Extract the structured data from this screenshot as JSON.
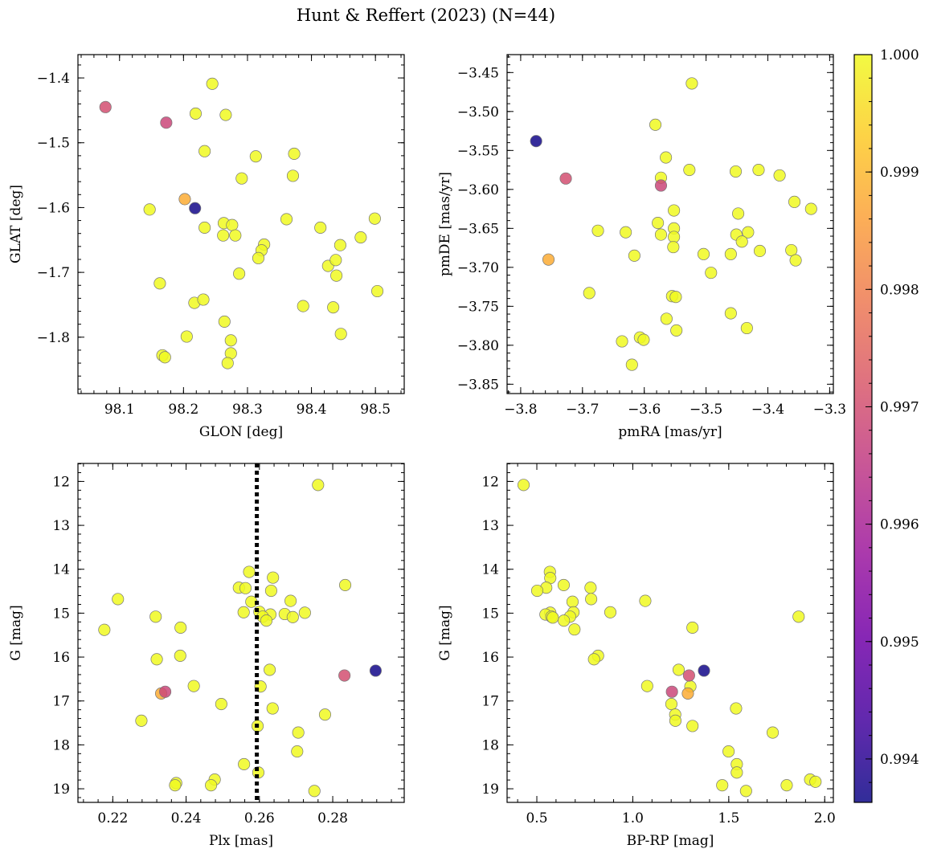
{
  "figure": {
    "title": "Hunt & Reffert (2023) (N=44)"
  },
  "chart_data": [
    {
      "type": "scatter",
      "id": "ax-glon-glat",
      "xlabel": "GLON [deg]",
      "ylabel": "GLAT [deg]",
      "xlim": [
        98.035,
        98.545
      ],
      "ylim": [
        -1.887,
        -1.364
      ],
      "invert_y": false,
      "xticks": [
        98.1,
        98.2,
        98.3,
        98.4,
        98.5
      ],
      "xtick_labels": [
        "98.1",
        "98.2",
        "98.3",
        "98.4",
        "98.5"
      ],
      "yticks": [
        -1.4,
        -1.5,
        -1.6,
        -1.7,
        -1.8
      ],
      "ytick_labels": [
        "−1.4",
        "−1.5",
        "−1.6",
        "−1.7",
        "−1.8"
      ],
      "points": [
        [
          98.078,
          -1.445,
          0.997
        ],
        [
          98.173,
          -1.469,
          0.9968
        ],
        [
          98.202,
          -1.587,
          0.9988
        ],
        [
          98.218,
          -1.601,
          0.9937
        ],
        [
          98.245,
          -1.409,
          1.0
        ],
        [
          98.219,
          -1.455,
          1.0
        ],
        [
          98.266,
          -1.457,
          1.0
        ],
        [
          98.233,
          -1.513,
          1.0
        ],
        [
          98.313,
          -1.521,
          1.0
        ],
        [
          98.373,
          -1.517,
          1.0
        ],
        [
          98.291,
          -1.555,
          1.0
        ],
        [
          98.371,
          -1.551,
          1.0
        ],
        [
          98.147,
          -1.603,
          1.0
        ],
        [
          98.263,
          -1.624,
          1.0
        ],
        [
          98.276,
          -1.627,
          1.0
        ],
        [
          98.233,
          -1.631,
          1.0
        ],
        [
          98.361,
          -1.618,
          1.0
        ],
        [
          98.414,
          -1.631,
          1.0
        ],
        [
          98.499,
          -1.617,
          1.0
        ],
        [
          98.262,
          -1.643,
          1.0
        ],
        [
          98.281,
          -1.643,
          1.0
        ],
        [
          98.326,
          -1.657,
          1.0
        ],
        [
          98.322,
          -1.666,
          1.0
        ],
        [
          98.317,
          -1.678,
          1.0
        ],
        [
          98.445,
          -1.658,
          1.0
        ],
        [
          98.477,
          -1.646,
          1.0
        ],
        [
          98.426,
          -1.69,
          1.0
        ],
        [
          98.438,
          -1.681,
          1.0
        ],
        [
          98.287,
          -1.702,
          1.0
        ],
        [
          98.439,
          -1.705,
          1.0
        ],
        [
          98.163,
          -1.717,
          1.0
        ],
        [
          98.503,
          -1.729,
          1.0
        ],
        [
          98.217,
          -1.747,
          1.0
        ],
        [
          98.231,
          -1.742,
          1.0
        ],
        [
          98.387,
          -1.752,
          1.0
        ],
        [
          98.434,
          -1.754,
          1.0
        ],
        [
          98.264,
          -1.776,
          1.0
        ],
        [
          98.446,
          -1.795,
          1.0
        ],
        [
          98.205,
          -1.799,
          1.0
        ],
        [
          98.274,
          -1.805,
          1.0
        ],
        [
          98.274,
          -1.825,
          1.0
        ],
        [
          98.167,
          -1.828,
          1.0
        ],
        [
          98.171,
          -1.831,
          1.0
        ],
        [
          98.269,
          -1.84,
          1.0
        ]
      ]
    },
    {
      "type": "scatter",
      "id": "ax-pmra-pmde",
      "xlabel": "pmRA [mas/yr]",
      "ylabel": "pmDE [mas/yr]",
      "xlim": [
        -3.822,
        -3.294
      ],
      "ylim": [
        -3.862,
        -3.427
      ],
      "invert_y": false,
      "xticks": [
        -3.8,
        -3.7,
        -3.6,
        -3.5,
        -3.4,
        -3.3
      ],
      "xtick_labels": [
        "−3.8",
        "−3.7",
        "−3.6",
        "−3.5",
        "−3.4",
        "−3.3"
      ],
      "yticks": [
        -3.45,
        -3.5,
        -3.55,
        -3.6,
        -3.65,
        -3.7,
        -3.75,
        -3.8,
        -3.85
      ],
      "ytick_labels": [
        "−3.45",
        "−3.50",
        "−3.55",
        "−3.60",
        "−3.65",
        "−3.70",
        "−3.75",
        "−3.80",
        "−3.85"
      ],
      "points": [
        [
          -3.775,
          -3.538,
          0.9937
        ],
        [
          -3.727,
          -3.586,
          0.997
        ],
        [
          -3.573,
          -3.595,
          0.9968
        ],
        [
          -3.755,
          -3.69,
          0.9988
        ],
        [
          -3.523,
          -3.464,
          1.0
        ],
        [
          -3.582,
          -3.517,
          1.0
        ],
        [
          -3.565,
          -3.559,
          1.0
        ],
        [
          -3.527,
          -3.575,
          1.0
        ],
        [
          -3.452,
          -3.577,
          1.0
        ],
        [
          -3.415,
          -3.575,
          1.0
        ],
        [
          -3.381,
          -3.582,
          1.0
        ],
        [
          -3.573,
          -3.585,
          1.0
        ],
        [
          -3.357,
          -3.616,
          1.0
        ],
        [
          -3.33,
          -3.625,
          1.0
        ],
        [
          -3.552,
          -3.627,
          1.0
        ],
        [
          -3.448,
          -3.631,
          1.0
        ],
        [
          -3.578,
          -3.643,
          1.0
        ],
        [
          -3.552,
          -3.65,
          1.0
        ],
        [
          -3.675,
          -3.653,
          1.0
        ],
        [
          -3.63,
          -3.655,
          1.0
        ],
        [
          -3.573,
          -3.658,
          1.0
        ],
        [
          -3.432,
          -3.655,
          1.0
        ],
        [
          -3.552,
          -3.661,
          1.0
        ],
        [
          -3.451,
          -3.658,
          1.0
        ],
        [
          -3.442,
          -3.667,
          1.0
        ],
        [
          -3.553,
          -3.674,
          1.0
        ],
        [
          -3.413,
          -3.679,
          1.0
        ],
        [
          -3.362,
          -3.678,
          1.0
        ],
        [
          -3.616,
          -3.685,
          1.0
        ],
        [
          -3.504,
          -3.683,
          1.0
        ],
        [
          -3.46,
          -3.683,
          1.0
        ],
        [
          -3.355,
          -3.691,
          1.0
        ],
        [
          -3.492,
          -3.707,
          1.0
        ],
        [
          -3.689,
          -3.733,
          1.0
        ],
        [
          -3.555,
          -3.737,
          1.0
        ],
        [
          -3.549,
          -3.738,
          1.0
        ],
        [
          -3.46,
          -3.759,
          1.0
        ],
        [
          -3.564,
          -3.766,
          1.0
        ],
        [
          -3.434,
          -3.778,
          1.0
        ],
        [
          -3.548,
          -3.781,
          1.0
        ],
        [
          -3.607,
          -3.79,
          1.0
        ],
        [
          -3.601,
          -3.793,
          1.0
        ],
        [
          -3.636,
          -3.795,
          1.0
        ],
        [
          -3.62,
          -3.825,
          1.0
        ]
      ]
    },
    {
      "type": "scatter",
      "id": "ax-plx-g",
      "xlabel": "Plx [mas]",
      "ylabel": "G [mag]",
      "xlim": [
        0.2105,
        0.2995
      ],
      "ylim": [
        19.31,
        11.59
      ],
      "invert_y": true,
      "vline": {
        "x": 0.2593,
        "style": "dotted",
        "color": "#000000"
      },
      "xticks": [
        0.22,
        0.24,
        0.26,
        0.28
      ],
      "xtick_labels": [
        "0.22",
        "0.24",
        "0.26",
        "0.28"
      ],
      "yticks": [
        12,
        13,
        14,
        15,
        16,
        17,
        18,
        19
      ],
      "ytick_labels": [
        "12",
        "13",
        "14",
        "15",
        "16",
        "17",
        "18",
        "19"
      ],
      "points": [
        [
          0.2917,
          16.31,
          0.9937
        ],
        [
          0.2832,
          16.42,
          0.997
        ],
        [
          0.2343,
          16.79,
          0.9968
        ],
        [
          0.2332,
          16.83,
          0.9988
        ],
        [
          0.276,
          12.08,
          1.0
        ],
        [
          0.2572,
          14.06,
          1.0
        ],
        [
          0.2637,
          14.19,
          1.0
        ],
        [
          0.2834,
          14.36,
          1.0
        ],
        [
          0.2544,
          14.42,
          1.0
        ],
        [
          0.2562,
          14.43,
          1.0
        ],
        [
          0.2632,
          14.49,
          1.0
        ],
        [
          0.2214,
          14.68,
          1.0
        ],
        [
          0.2685,
          14.72,
          1.0
        ],
        [
          0.2578,
          14.74,
          1.0
        ],
        [
          0.2557,
          14.98,
          1.0
        ],
        [
          0.26,
          14.97,
          1.0
        ],
        [
          0.2724,
          14.99,
          1.0
        ],
        [
          0.263,
          15.03,
          1.0
        ],
        [
          0.2669,
          15.02,
          1.0
        ],
        [
          0.2609,
          15.08,
          1.0
        ],
        [
          0.2317,
          15.08,
          1.0
        ],
        [
          0.2691,
          15.09,
          1.0
        ],
        [
          0.2619,
          15.17,
          1.0
        ],
        [
          0.2385,
          15.33,
          1.0
        ],
        [
          0.2177,
          15.38,
          1.0
        ],
        [
          0.2384,
          15.97,
          1.0
        ],
        [
          0.232,
          16.05,
          1.0
        ],
        [
          0.2628,
          16.29,
          1.0
        ],
        [
          0.2421,
          16.66,
          1.0
        ],
        [
          0.2603,
          16.67,
          1.0
        ],
        [
          0.2496,
          17.07,
          1.0
        ],
        [
          0.2636,
          17.17,
          1.0
        ],
        [
          0.2779,
          17.31,
          1.0
        ],
        [
          0.2278,
          17.45,
          1.0
        ],
        [
          0.2595,
          17.57,
          1.0
        ],
        [
          0.2706,
          17.72,
          1.0
        ],
        [
          0.2703,
          18.15,
          1.0
        ],
        [
          0.2558,
          18.44,
          1.0
        ],
        [
          0.2597,
          18.63,
          1.0
        ],
        [
          0.2478,
          18.79,
          1.0
        ],
        [
          0.2373,
          18.87,
          1.0
        ],
        [
          0.237,
          18.92,
          1.0
        ],
        [
          0.2468,
          18.92,
          1.0
        ],
        [
          0.275,
          19.05,
          1.0
        ]
      ]
    },
    {
      "type": "scatter",
      "id": "ax-bprp-g",
      "xlabel": "BP-RP [mag]",
      "ylabel": "G [mag]",
      "xlim": [
        0.345,
        2.045
      ],
      "ylim": [
        19.31,
        11.59
      ],
      "invert_y": true,
      "xticks": [
        0.5,
        1.0,
        1.5,
        2.0
      ],
      "xtick_labels": [
        "0.5",
        "1.0",
        "1.5",
        "2.0"
      ],
      "yticks": [
        12,
        13,
        14,
        15,
        16,
        17,
        18,
        19
      ],
      "ytick_labels": [
        "12",
        "13",
        "14",
        "15",
        "16",
        "17",
        "18",
        "19"
      ],
      "points": [
        [
          1.371,
          16.31,
          0.9937
        ],
        [
          1.293,
          16.42,
          0.997
        ],
        [
          1.204,
          16.79,
          0.9968
        ],
        [
          1.287,
          16.83,
          0.9988
        ],
        [
          0.431,
          12.08,
          1.0
        ],
        [
          0.568,
          14.06,
          1.0
        ],
        [
          0.57,
          14.2,
          1.0
        ],
        [
          0.64,
          14.36,
          1.0
        ],
        [
          0.549,
          14.42,
          1.0
        ],
        [
          0.78,
          14.42,
          1.0
        ],
        [
          0.502,
          14.49,
          1.0
        ],
        [
          0.783,
          14.68,
          1.0
        ],
        [
          1.065,
          14.72,
          1.0
        ],
        [
          0.686,
          14.74,
          1.0
        ],
        [
          0.883,
          14.98,
          1.0
        ],
        [
          0.691,
          14.98,
          1.0
        ],
        [
          0.57,
          14.99,
          1.0
        ],
        [
          0.545,
          15.03,
          1.0
        ],
        [
          0.673,
          15.08,
          1.0
        ],
        [
          0.576,
          15.08,
          1.0
        ],
        [
          0.583,
          15.1,
          1.0
        ],
        [
          1.864,
          15.08,
          1.0
        ],
        [
          0.641,
          15.17,
          1.0
        ],
        [
          1.311,
          15.33,
          1.0
        ],
        [
          0.696,
          15.37,
          1.0
        ],
        [
          0.819,
          15.97,
          1.0
        ],
        [
          0.798,
          16.05,
          1.0
        ],
        [
          1.239,
          16.29,
          1.0
        ],
        [
          1.075,
          16.66,
          1.0
        ],
        [
          1.3,
          16.67,
          1.0
        ],
        [
          1.201,
          17.07,
          1.0
        ],
        [
          1.538,
          17.17,
          1.0
        ],
        [
          1.221,
          17.31,
          1.0
        ],
        [
          1.222,
          17.45,
          1.0
        ],
        [
          1.311,
          17.57,
          1.0
        ],
        [
          1.729,
          17.72,
          1.0
        ],
        [
          1.499,
          18.15,
          1.0
        ],
        [
          1.542,
          18.44,
          1.0
        ],
        [
          1.542,
          18.63,
          1.0
        ],
        [
          1.924,
          18.79,
          1.0
        ],
        [
          1.952,
          18.84,
          1.0
        ],
        [
          1.466,
          18.92,
          1.0
        ],
        [
          1.802,
          18.92,
          1.0
        ],
        [
          1.59,
          19.05,
          1.0
        ]
      ]
    }
  ],
  "colorbar": {
    "colormap": "plasma",
    "vmin": 0.99363,
    "vmax": 1.0,
    "ticks": [
      0.994,
      0.995,
      0.996,
      0.997,
      0.998,
      0.999,
      1.0
    ],
    "tick_labels": [
      "0.994",
      "0.995",
      "0.996",
      "0.997",
      "0.998",
      "0.999",
      "1.000"
    ]
  },
  "colors": {
    "plasma_stops": [
      "#0d0887",
      "#46039f",
      "#7201a8",
      "#9c179e",
      "#bd3786",
      "#d8576b",
      "#ed7953",
      "#fb9f3a",
      "#fdca26",
      "#f0f921"
    ]
  }
}
